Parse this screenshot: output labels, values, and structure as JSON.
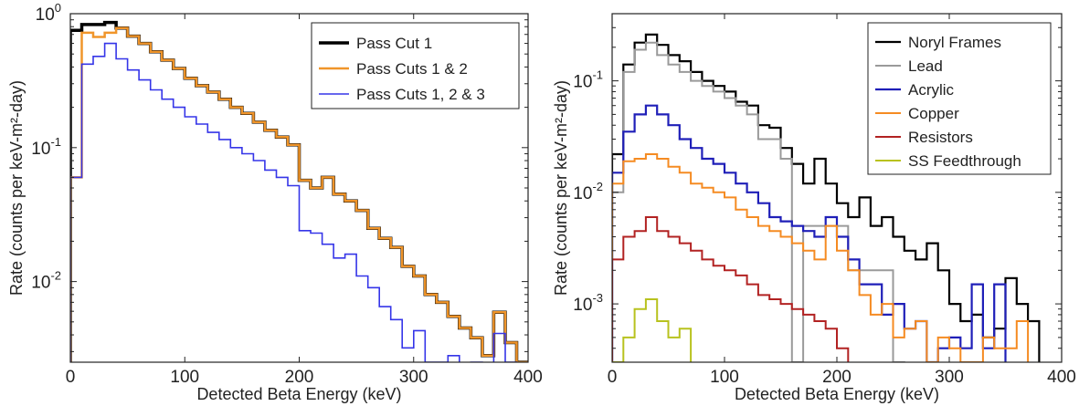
{
  "chart_data": [
    {
      "type": "line",
      "step": true,
      "xlabel": "Detected Beta Energy (keV)",
      "ylabel": "Rate (counts per keV-m²-day)",
      "xlim": [
        0,
        400
      ],
      "ylim": [
        0.0025,
        1.0
      ],
      "yscale": "log",
      "xticks": [
        "0",
        "100",
        "200",
        "300",
        "400"
      ],
      "yticks": [
        {
          "value": 1.0,
          "base": "10",
          "exp": "0"
        },
        {
          "value": 0.1,
          "base": "10",
          "exp": "-1"
        },
        {
          "value": 0.01,
          "base": "10",
          "exp": "-2"
        }
      ],
      "legend_position": "top-right",
      "grid": false,
      "bin_width": 10,
      "series": [
        {
          "name": "Pass Cut 1",
          "color": "#000000",
          "values": [
            0.75,
            0.83,
            0.83,
            0.86,
            0.78,
            0.68,
            0.6,
            0.52,
            0.45,
            0.39,
            0.33,
            0.29,
            0.26,
            0.23,
            0.2,
            0.18,
            0.155,
            0.135,
            0.12,
            0.105,
            0.057,
            0.05,
            0.06,
            0.045,
            0.04,
            0.034,
            0.025,
            0.021,
            0.018,
            0.013,
            0.011,
            0.008,
            0.007,
            0.0055,
            0.0045,
            0.0038,
            0.0028,
            0.0059,
            0.0035,
            0.0025
          ]
        },
        {
          "name": "Pass Cuts 1 & 2",
          "color": "#f0952a",
          "values": [
            0.06,
            0.72,
            0.67,
            0.72,
            0.78,
            0.68,
            0.6,
            0.52,
            0.45,
            0.39,
            0.33,
            0.29,
            0.26,
            0.23,
            0.2,
            0.18,
            0.155,
            0.135,
            0.12,
            0.105,
            0.057,
            0.05,
            0.06,
            0.045,
            0.04,
            0.034,
            0.025,
            0.021,
            0.018,
            0.013,
            0.011,
            0.008,
            0.007,
            0.0055,
            0.0045,
            0.0038,
            0.0028,
            0.0059,
            0.0035,
            0.0025
          ]
        },
        {
          "name": "Pass Cuts 1, 2 & 3",
          "color": "#3535e8",
          "values": [
            0.06,
            0.42,
            0.48,
            0.6,
            0.46,
            0.38,
            0.32,
            0.27,
            0.23,
            0.2,
            0.17,
            0.15,
            0.13,
            0.115,
            0.1,
            0.09,
            0.08,
            0.068,
            0.06,
            0.052,
            0.024,
            0.023,
            0.019,
            0.015,
            0.016,
            0.011,
            0.009,
            0.0065,
            0.0052,
            0.0032,
            0.0043,
            0.0025,
            0.0025,
            0.0028,
            0.002,
            0.0025,
            0.0015,
            0.0041,
            0.0025,
            0.0018
          ]
        }
      ]
    },
    {
      "type": "line",
      "step": true,
      "xlabel": "Detected Beta Energy (keV)",
      "ylabel": "Rate (counts per keV-m²-day)",
      "xlim": [
        0,
        400
      ],
      "ylim": [
        0.0003,
        0.4
      ],
      "yscale": "log",
      "xticks": [
        "0",
        "100",
        "200",
        "300",
        "400"
      ],
      "yticks": [
        {
          "value": 0.1,
          "base": "10",
          "exp": "-1"
        },
        {
          "value": 0.01,
          "base": "10",
          "exp": "-2"
        },
        {
          "value": 0.001,
          "base": "10",
          "exp": "-3"
        }
      ],
      "legend_position": "top-right",
      "grid": false,
      "bin_width": 10,
      "series": [
        {
          "name": "Noryl Frames",
          "color": "#000000",
          "values": [
            0.022,
            0.14,
            0.22,
            0.26,
            0.21,
            0.17,
            0.15,
            0.12,
            0.1,
            0.09,
            0.08,
            0.065,
            0.06,
            0.04,
            0.038,
            0.025,
            0.018,
            0.012,
            0.02,
            0.012,
            0.008,
            0.006,
            0.009,
            0.005,
            0.006,
            0.004,
            0.003,
            0.0025,
            0.0035,
            0.002,
            0.001,
            0.0007,
            0.0008,
            0.0005,
            0.0006,
            0.0017,
            0.001,
            0.0007,
            null,
            null
          ]
        },
        {
          "name": "Lead",
          "color": "#9a9a9a",
          "values": [
            0.01,
            0.12,
            0.19,
            0.22,
            0.17,
            0.14,
            0.12,
            0.1,
            0.09,
            0.08,
            0.07,
            0.06,
            0.05,
            0.03,
            0.03,
            0.02,
            0.0003,
            0.005,
            0.005,
            0.005,
            0.005,
            0.002,
            0.002,
            0.002,
            0.002,
            0.0003,
            null,
            null,
            null,
            null,
            null,
            null,
            null,
            null,
            null,
            null,
            null,
            null,
            null,
            null
          ]
        },
        {
          "name": "Acrylic",
          "color": "#1f1fb8",
          "values": [
            0.015,
            0.035,
            0.05,
            0.06,
            0.05,
            0.04,
            0.03,
            0.025,
            0.02,
            0.018,
            0.015,
            0.012,
            0.01,
            0.008,
            0.006,
            0.0055,
            0.005,
            0.0045,
            0.004,
            0.006,
            0.004,
            0.0025,
            0.0015,
            0.0015,
            0.0008,
            0.001,
            0.0006,
            0.0007,
            0.0003,
            0.0004,
            0.0005,
            0.0004,
            0.0015,
            0.0004,
            0.0015,
            null,
            null,
            null,
            null,
            null
          ]
        },
        {
          "name": "Copper",
          "color": "#f58b22",
          "values": [
            0.012,
            0.019,
            0.02,
            0.022,
            0.02,
            0.017,
            0.015,
            0.012,
            0.011,
            0.01,
            0.009,
            0.007,
            0.006,
            0.005,
            0.0045,
            0.004,
            0.0035,
            0.003,
            0.0025,
            0.005,
            0.003,
            0.002,
            0.0012,
            0.0008,
            0.001,
            0.0005,
            0.0006,
            0.0007,
            0.0003,
            0.0005,
            0.0004,
            0.0003,
            0.0003,
            0.0005,
            0.0004,
            0.0004,
            0.0007,
            null,
            null,
            null
          ]
        },
        {
          "name": "Resistors",
          "color": "#b22222",
          "values": [
            0.0025,
            0.004,
            0.0045,
            0.006,
            0.0045,
            0.004,
            0.0035,
            0.003,
            0.0025,
            0.0022,
            0.002,
            0.0018,
            0.0015,
            0.0012,
            0.0011,
            0.001,
            0.0009,
            0.0008,
            0.0007,
            0.0006,
            0.0004,
            null,
            null,
            null,
            null,
            null,
            null,
            null,
            null,
            null,
            null,
            null,
            null,
            null,
            null,
            null,
            null,
            null,
            null,
            null
          ]
        },
        {
          "name": "SS Feedthrough",
          "color": "#b8c21e",
          "values": [
            0.0003,
            0.0005,
            0.0009,
            0.0011,
            0.0007,
            0.0005,
            0.0006,
            null,
            null,
            null,
            null,
            null,
            null,
            null,
            null,
            null,
            null,
            null,
            null,
            null,
            null,
            null,
            null,
            null,
            null,
            null,
            null,
            null,
            null,
            null,
            null,
            null,
            null,
            null,
            null,
            null,
            null,
            null,
            null,
            null
          ]
        }
      ]
    }
  ]
}
